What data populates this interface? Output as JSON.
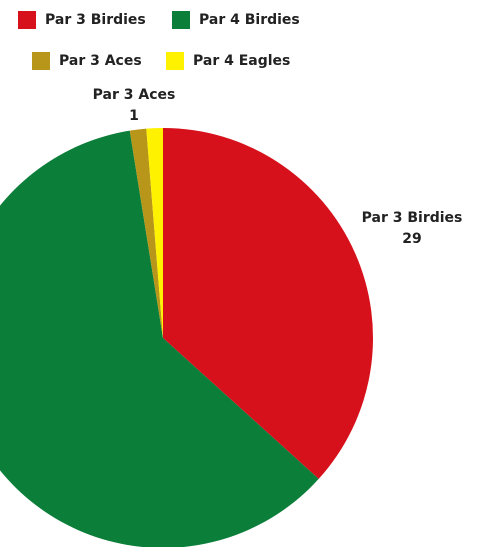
{
  "chart_data": {
    "type": "pie",
    "categories": [
      "Par 3 Birdies",
      "Par 4 Birdies",
      "Par 3 Aces",
      "Par 4 Eagles"
    ],
    "values": [
      29,
      48,
      1,
      1
    ],
    "colors": [
      "#d7111b",
      "#0b7e3a",
      "#b8961a",
      "#fff200"
    ],
    "legend": "top"
  }
}
